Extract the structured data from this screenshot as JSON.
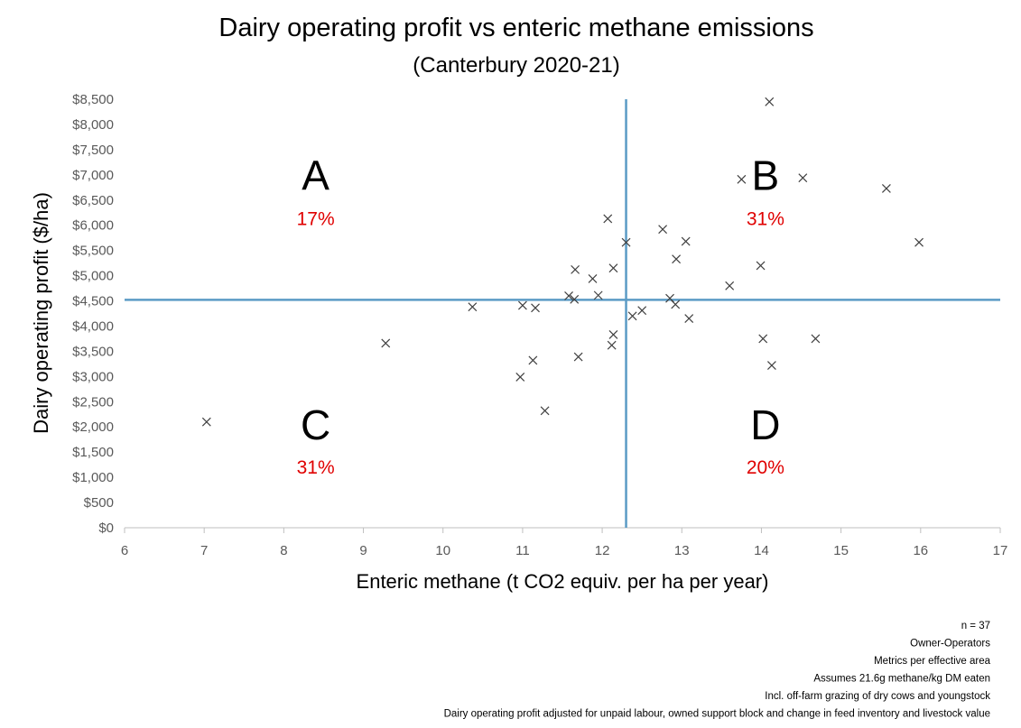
{
  "chart_data": {
    "type": "scatter",
    "title": "Dairy operating profit vs enteric methane emissions",
    "subtitle": "(Canterbury 2020-21)",
    "xlabel": "Enteric methane (t CO2 equiv. per ha per year)",
    "ylabel": "Dairy operating profit ($/ha)",
    "xlim": [
      6,
      17
    ],
    "ylim": [
      0,
      8500
    ],
    "xticks": [
      "6",
      "7",
      "8",
      "9",
      "10",
      "11",
      "12",
      "13",
      "14",
      "15",
      "16",
      "17"
    ],
    "yticks": [
      "$0",
      "$500",
      "$1,000",
      "$1,500",
      "$2,000",
      "$2,500",
      "$3,000",
      "$3,500",
      "$4,000",
      "$4,500",
      "$5,000",
      "$5,500",
      "$6,000",
      "$6,500",
      "$7,000",
      "$7,500",
      "$8,000",
      "$8,500"
    ],
    "grid": false,
    "marker": "x",
    "marker_color": "#404040",
    "reference_line_color": "#5b9bc5",
    "reference_lines": {
      "x": 12.3,
      "y": 4520
    },
    "points": [
      {
        "x": 7.03,
        "y": 2100
      },
      {
        "x": 9.28,
        "y": 3660
      },
      {
        "x": 10.37,
        "y": 4380
      },
      {
        "x": 10.97,
        "y": 2990
      },
      {
        "x": 11.0,
        "y": 4410
      },
      {
        "x": 11.13,
        "y": 3320
      },
      {
        "x": 11.16,
        "y": 4360
      },
      {
        "x": 11.28,
        "y": 2320
      },
      {
        "x": 11.58,
        "y": 4600
      },
      {
        "x": 11.65,
        "y": 4530
      },
      {
        "x": 11.66,
        "y": 5120
      },
      {
        "x": 11.7,
        "y": 3390
      },
      {
        "x": 11.88,
        "y": 4940
      },
      {
        "x": 11.95,
        "y": 4610
      },
      {
        "x": 12.07,
        "y": 6130
      },
      {
        "x": 12.12,
        "y": 3620
      },
      {
        "x": 12.14,
        "y": 3830
      },
      {
        "x": 12.14,
        "y": 5150
      },
      {
        "x": 12.3,
        "y": 5660
      },
      {
        "x": 12.38,
        "y": 4200
      },
      {
        "x": 12.5,
        "y": 4310
      },
      {
        "x": 12.76,
        "y": 5920
      },
      {
        "x": 12.85,
        "y": 4550
      },
      {
        "x": 12.92,
        "y": 4430
      },
      {
        "x": 12.93,
        "y": 5330
      },
      {
        "x": 13.05,
        "y": 5680
      },
      {
        "x": 13.09,
        "y": 4150
      },
      {
        "x": 13.6,
        "y": 4800
      },
      {
        "x": 13.75,
        "y": 6910
      },
      {
        "x": 13.99,
        "y": 5200
      },
      {
        "x": 14.02,
        "y": 3750
      },
      {
        "x": 14.1,
        "y": 8450
      },
      {
        "x": 14.13,
        "y": 3220
      },
      {
        "x": 14.52,
        "y": 6940
      },
      {
        "x": 14.68,
        "y": 3750
      },
      {
        "x": 15.57,
        "y": 6730
      },
      {
        "x": 15.98,
        "y": 5660
      }
    ],
    "quadrants": [
      {
        "letter": "A",
        "percent": "17%",
        "x": 8.4,
        "letter_y": 6700,
        "pct_y": 6000
      },
      {
        "letter": "B",
        "percent": "31%",
        "x": 14.05,
        "letter_y": 6700,
        "pct_y": 6000
      },
      {
        "letter": "C",
        "percent": "31%",
        "x": 8.4,
        "letter_y": 1750,
        "pct_y": 1070
      },
      {
        "letter": "D",
        "percent": "20%",
        "x": 14.05,
        "letter_y": 1750,
        "pct_y": 1070
      }
    ]
  },
  "notes": [
    "n = 37",
    "Owner-Operators",
    "Metrics per effective area",
    "Assumes 21.6g methane/kg DM eaten",
    "Incl. off-farm grazing of dry cows and youngstock",
    "Dairy operating profit adjusted for unpaid labour, owned support block and change in feed inventory and livestock value"
  ]
}
